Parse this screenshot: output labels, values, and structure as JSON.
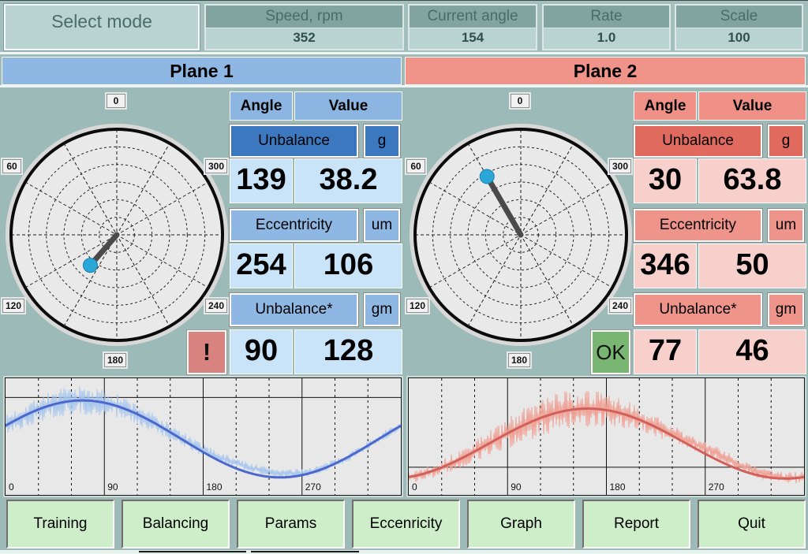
{
  "top_bar": {
    "select_mode_label": "Select mode",
    "metrics": [
      {
        "label": "Speed, rpm",
        "value": "352"
      },
      {
        "label": "Current angle",
        "value": "154"
      },
      {
        "label": "Rate",
        "value": "1.0"
      },
      {
        "label": "Scale",
        "value": "100"
      }
    ]
  },
  "planes": [
    {
      "title": "Plane 1",
      "accent_color": "#8fb7e3",
      "value_bg_color": "#c9e4f8",
      "selected_button_color": "#3c78c0",
      "badge": {
        "text": "!",
        "type": "alert",
        "color": "#d98381"
      },
      "table": {
        "angle_header": "Angle",
        "value_header": "Value",
        "rows": [
          {
            "label": "Unbalance",
            "unit": "g",
            "angle": "139",
            "value": "38.2",
            "selected": true
          },
          {
            "label": "Eccentricity",
            "unit": "um",
            "angle": "254",
            "value": "106",
            "selected": false
          },
          {
            "label": "Unbalance*",
            "unit": "gm",
            "angle": "90",
            "value": "128",
            "selected": false
          }
        ]
      }
    },
    {
      "title": "Plane 2",
      "accent_color": "#f0948a",
      "value_bg_color": "#f7d0cb",
      "selected_button_color": "#e06a5e",
      "badge": {
        "text": "OK",
        "type": "ok",
        "color": "#79b671"
      },
      "table": {
        "angle_header": "Angle",
        "value_header": "Value",
        "rows": [
          {
            "label": "Unbalance",
            "unit": "g",
            "angle": "30",
            "value": "63.8",
            "selected": true
          },
          {
            "label": "Eccentricity",
            "unit": "um",
            "angle": "346",
            "value": "50",
            "selected": false
          },
          {
            "label": "Unbalance*",
            "unit": "gm",
            "angle": "77",
            "value": "46",
            "selected": false
          }
        ]
      }
    }
  ],
  "chart_data": [
    {
      "type": "polar",
      "plane": "Plane 1",
      "angle_labels": [
        0,
        60,
        120,
        180,
        240,
        300
      ],
      "rotation": "counterclockwise",
      "rings": 5,
      "needle": {
        "angle_deg": 139,
        "value": 38.2,
        "scale": 100
      },
      "needle_color": "#4a4a4a",
      "marker_color": "#29a7d8",
      "face_color": "#e9e9e9"
    },
    {
      "type": "polar",
      "plane": "Plane 2",
      "angle_labels": [
        0,
        60,
        120,
        180,
        240,
        300
      ],
      "rotation": "counterclockwise",
      "rings": 5,
      "needle": {
        "angle_deg": 30,
        "value": 63.8,
        "scale": 100
      },
      "needle_color": "#4a4a4a",
      "marker_color": "#29a7d8",
      "face_color": "#e9e9e9"
    },
    {
      "type": "line",
      "plane": "Plane 1",
      "x_ticks": [
        0,
        90,
        180,
        270
      ],
      "x_range": [
        0,
        360
      ],
      "grid_deg_step": 30,
      "ref_line_frac": 0.165,
      "series": [
        {
          "name": "vibration-raw",
          "color": "#a6c6ee",
          "kind": "noisy"
        },
        {
          "name": "vibration-filtered-1x",
          "color": "#4c68cc",
          "kind": "smooth"
        }
      ],
      "smooth": {
        "peak_deg": 70,
        "mid_frac": 0.52,
        "amp_frac": 0.33
      },
      "noise": {
        "base_frac": 0.022,
        "extra_frac": 0.05,
        "extra_center_deg": 60,
        "extra_width_deg": 90,
        "dev_amp_frac": -0.05,
        "dev_center_deg": 225,
        "dev_width_deg": 45
      },
      "seed": 7
    },
    {
      "type": "line",
      "plane": "Plane 2",
      "x_ticks": [
        0,
        90,
        180,
        270
      ],
      "x_range": [
        0,
        360
      ],
      "grid_deg_step": 30,
      "ref_line_frac": 0.763,
      "series": [
        {
          "name": "vibration-raw",
          "color": "#f0a094",
          "kind": "noisy"
        },
        {
          "name": "vibration-filtered-1x",
          "color": "#d2605a",
          "kind": "smooth"
        }
      ],
      "smooth": {
        "peak_deg": 163,
        "mid_frac": 0.56,
        "amp_frac": 0.3
      },
      "noise": {
        "base_frac": 0.03,
        "extra_frac": 0.07,
        "extra_center_deg": 140,
        "extra_width_deg": 80,
        "dev_amp_frac": -0.055,
        "dev_center_deg": 285,
        "dev_width_deg": 40
      },
      "seed": 13
    }
  ],
  "nav_buttons": [
    "Training",
    "Balancing",
    "Params",
    "Eccenricity",
    "Graph",
    "Report",
    "Quit"
  ]
}
